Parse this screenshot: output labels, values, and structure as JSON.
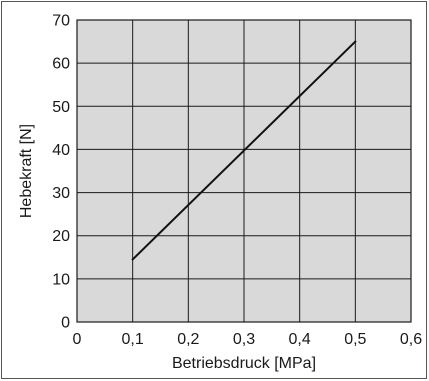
{
  "chart_data": {
    "type": "line",
    "title": "",
    "xlabel": "Betriebsdruck [MPa]",
    "ylabel": "Hebekraft [N]",
    "xlim": [
      0,
      0.6
    ],
    "ylim": [
      0,
      70
    ],
    "x_ticks": [
      0,
      0.1,
      0.2,
      0.3,
      0.4,
      0.5,
      0.6
    ],
    "x_tick_labels": [
      "0",
      "0,1",
      "0,2",
      "0,3",
      "0,4",
      "0,5",
      "0,6"
    ],
    "y_ticks": [
      0,
      10,
      20,
      30,
      40,
      50,
      60,
      70
    ],
    "y_tick_labels": [
      "0",
      "10",
      "20",
      "30",
      "40",
      "50",
      "60",
      "70"
    ],
    "grid": true,
    "plot_background": "#d9d9d9",
    "line_color": "#111111",
    "series": [
      {
        "x": [
          0.1,
          0.5
        ],
        "y": [
          14.5,
          65
        ]
      }
    ]
  }
}
